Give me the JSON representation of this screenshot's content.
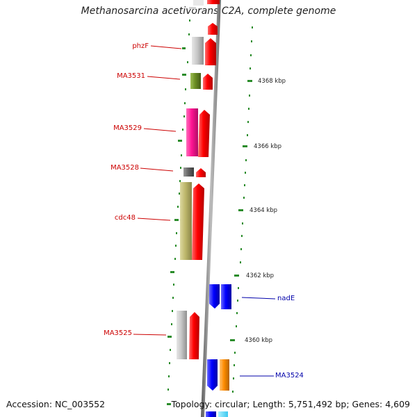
{
  "title": "Methanosarcina acetivorans C2A, complete genome",
  "footer": {
    "accession": "Accession: NC_003552",
    "summary": "Topology: circular; Length: 5,751,492 bp; Genes: 4,609"
  },
  "colors": {
    "backbone": "#8c8c8c",
    "forward_cds": "#ff0000",
    "reverse_cds": "#0000ff",
    "forward_label": "#cc0000",
    "reverse_label": "#0000aa",
    "tick": "#2a8c2a"
  },
  "scale": {
    "unit": "kbp",
    "ticks": [
      {
        "label": "4368 kbp"
      },
      {
        "label": "4366 kbp"
      },
      {
        "label": "4364 kbp"
      },
      {
        "label": "4362 kbp"
      },
      {
        "label": "4360 kbp"
      }
    ]
  },
  "genes": [
    {
      "name": "phzF",
      "strand": "forward",
      "feature_color": "#c8c8c8"
    },
    {
      "name": "MA3531",
      "strand": "forward",
      "feature_color": "#6b8e23"
    },
    {
      "name": "MA3529",
      "strand": "forward",
      "feature_color": "#ff1493"
    },
    {
      "name": "MA3528",
      "strand": "forward",
      "feature_color": "#666666"
    },
    {
      "name": "cdc48",
      "strand": "forward",
      "feature_color": "#bdb76b"
    },
    {
      "name": "nadE",
      "strand": "reverse",
      "feature_color": "#0000ff"
    },
    {
      "name": "MA3525",
      "strand": "forward",
      "feature_color": "#c8c8c8"
    },
    {
      "name": "MA3524",
      "strand": "reverse",
      "feature_color": "#ff8c00"
    }
  ]
}
